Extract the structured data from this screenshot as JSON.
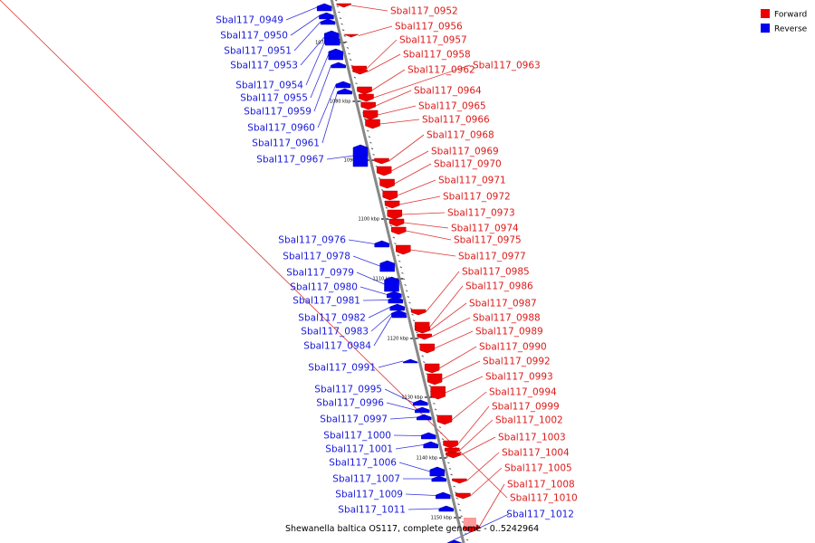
{
  "legend": {
    "forward": {
      "label": "Forward",
      "color": "#ee0000"
    },
    "reverse": {
      "label": "Reverse",
      "color": "#0000ee"
    }
  },
  "caption": "Shewanella baltica OS117, complete genome - 0..5242964",
  "backbone_color": "#888888",
  "tick_labels": [
    "1070 kbp",
    "1080 kbp",
    "1090 kbp",
    "1100 kbp",
    "1110 kbp",
    "1120 kbp",
    "1130 kbp",
    "1140 kbp",
    "1150 kbp"
  ],
  "reverse_genes": [
    "Sbal117_0949",
    "Sbal117_0950",
    "Sbal117_0951",
    "Sbal117_0953",
    "Sbal117_0954",
    "Sbal117_0955",
    "Sbal117_0959",
    "Sbal117_0960",
    "Sbal117_0961",
    "Sbal117_0967",
    "Sbal117_0976",
    "Sbal117_0978",
    "Sbal117_0979",
    "Sbal117_0980",
    "Sbal117_0981",
    "Sbal117_0982",
    "Sbal117_0983",
    "Sbal117_0984",
    "Sbal117_0991",
    "Sbal117_0995",
    "Sbal117_0996",
    "Sbal117_0997",
    "Sbal117_1000",
    "Sbal117_1001",
    "Sbal117_1006",
    "Sbal117_1007",
    "Sbal117_1009",
    "Sbal117_1011",
    "Sbal117_1012"
  ],
  "forward_genes": [
    "Sbal117_0952",
    "Sbal117_0956",
    "Sbal117_0957",
    "Sbal117_0958",
    "Sbal117_0962",
    "Sbal117_0963",
    "Sbal117_0964",
    "Sbal117_0965",
    "Sbal117_0966",
    "Sbal117_0968",
    "Sbal117_0969",
    "Sbal117_0970",
    "Sbal117_0971",
    "Sbal117_0972",
    "Sbal117_0973",
    "Sbal117_0974",
    "Sbal117_0975",
    "Sbal117_0977",
    "Sbal117_0985",
    "Sbal117_0986",
    "Sbal117_0987",
    "Sbal117_0988",
    "Sbal117_0989",
    "Sbal117_0990",
    "Sbal117_0992",
    "Sbal117_0993",
    "Sbal117_0994",
    "Sbal117_0999",
    "Sbal117_1002",
    "Sbal117_1003",
    "Sbal117_1004",
    "Sbal117_1005",
    "Sbal117_1008",
    "Sbal117_1010"
  ]
}
